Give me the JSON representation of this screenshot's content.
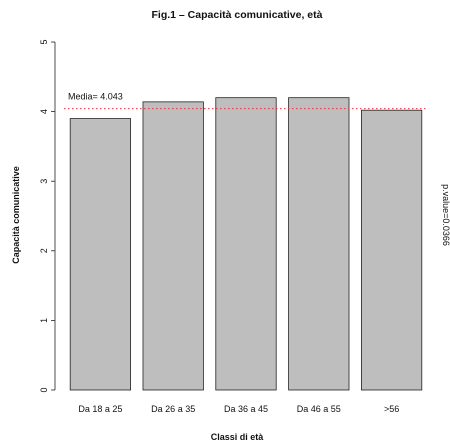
{
  "chart_data": {
    "type": "bar",
    "title": "Fig.1 – Capacità comunicative, età",
    "xlabel": "Classi di età",
    "ylabel": "Capacità comunicative",
    "categories": [
      "Da 18 a 25",
      "Da 26 a 35",
      "Da 36 a 45",
      "Da 46 a 55",
      ">56"
    ],
    "values": [
      3.9,
      4.14,
      4.2,
      4.2,
      4.02
    ],
    "ylim": [
      0,
      5
    ],
    "yticks": [
      0,
      1,
      2,
      3,
      4,
      5
    ],
    "grid": false,
    "colors": {
      "bar": "#bebebe",
      "bar_border": "#222222",
      "mean_line": "#e8323c"
    },
    "mean": {
      "value": 4.043,
      "label": "Media= 4.043"
    },
    "annotation": "p.value=0.0366"
  }
}
